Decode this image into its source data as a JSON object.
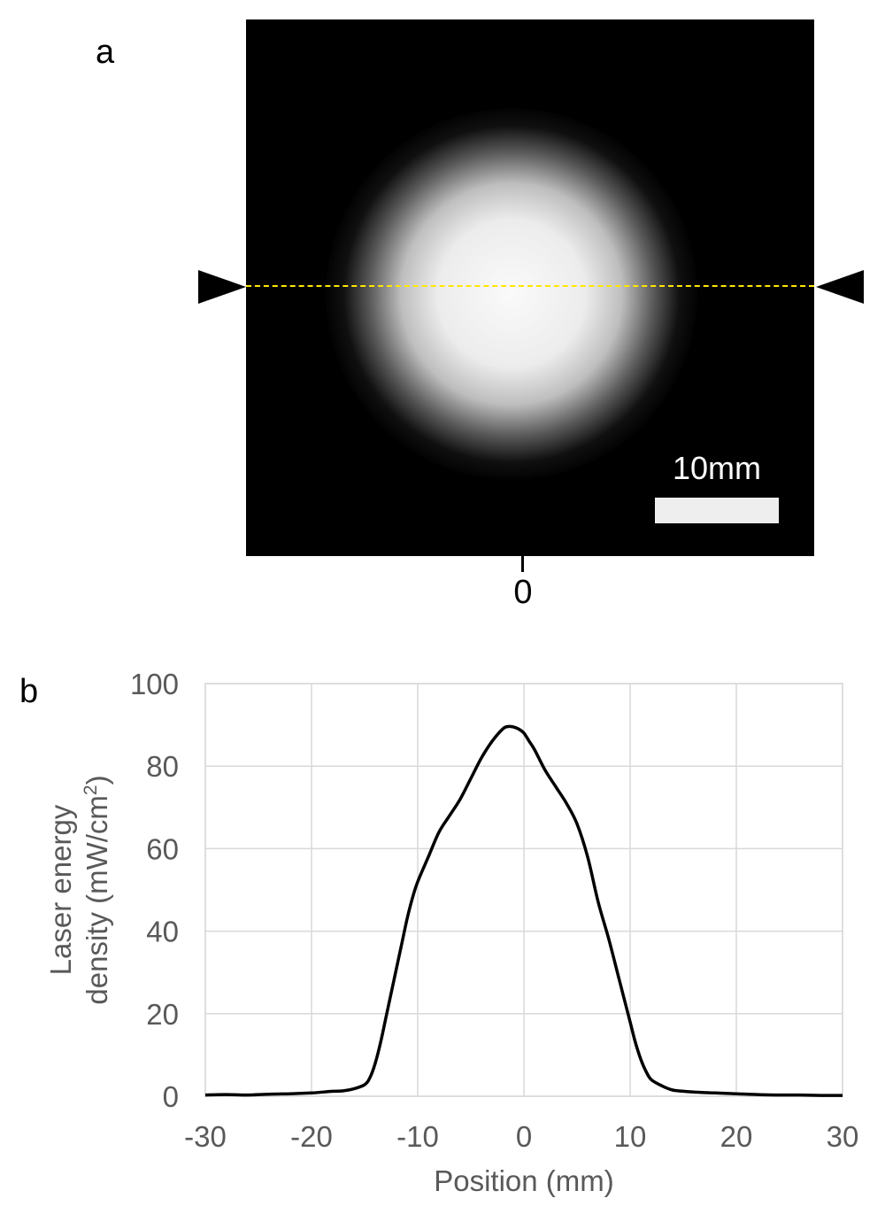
{
  "panels": {
    "a_label": "a",
    "b_label": "b"
  },
  "image_panel": {
    "scale_bar_label": "10mm",
    "zero_label": "0",
    "scan_line_color": "#ffe600",
    "marker_color": "#000000"
  },
  "chart_data": {
    "type": "line",
    "title": "",
    "xlabel": "Position (mm)",
    "ylabel_line1": "Laser energy",
    "ylabel_line2_prefix": "density (mW/cm",
    "ylabel_superscript": "2",
    "ylabel_line2_suffix": ")",
    "xlim": [
      -30,
      30
    ],
    "ylim": [
      0,
      100
    ],
    "x_ticks": [
      -30,
      -20,
      -10,
      0,
      10,
      20,
      30
    ],
    "y_ticks": [
      0,
      20,
      40,
      60,
      80,
      100
    ],
    "grid": true,
    "line_color": "#000000",
    "x": [
      -30,
      -28,
      -26,
      -24,
      -22,
      -20,
      -18,
      -17,
      -16,
      -15,
      -14.5,
      -14,
      -13.5,
      -13,
      -12.5,
      -12,
      -11.5,
      -11,
      -10.5,
      -10,
      -9,
      -8,
      -7,
      -6,
      -5,
      -4,
      -3,
      -2,
      -1.5,
      -1,
      -0.5,
      0,
      0.5,
      1,
      2,
      3,
      4,
      5,
      6,
      7,
      8,
      9,
      10,
      10.5,
      11,
      11.5,
      12,
      13,
      14,
      15,
      16,
      18,
      20,
      22,
      24,
      26,
      28,
      30
    ],
    "y": [
      0.3,
      0.4,
      0.3,
      0.5,
      0.6,
      0.8,
      1.2,
      1.3,
      1.8,
      2.8,
      4.5,
      8,
      13,
      19,
      25,
      31,
      37,
      43,
      48,
      52,
      58,
      64,
      68,
      72,
      77,
      82,
      86,
      89,
      89.6,
      89.5,
      89,
      88,
      86,
      84,
      79,
      75,
      71,
      66,
      58,
      47,
      38,
      28,
      18,
      13,
      9,
      6,
      4,
      2.5,
      1.5,
      1.2,
      1.0,
      0.8,
      0.6,
      0.4,
      0.3,
      0.3,
      0.2,
      0.2
    ]
  }
}
